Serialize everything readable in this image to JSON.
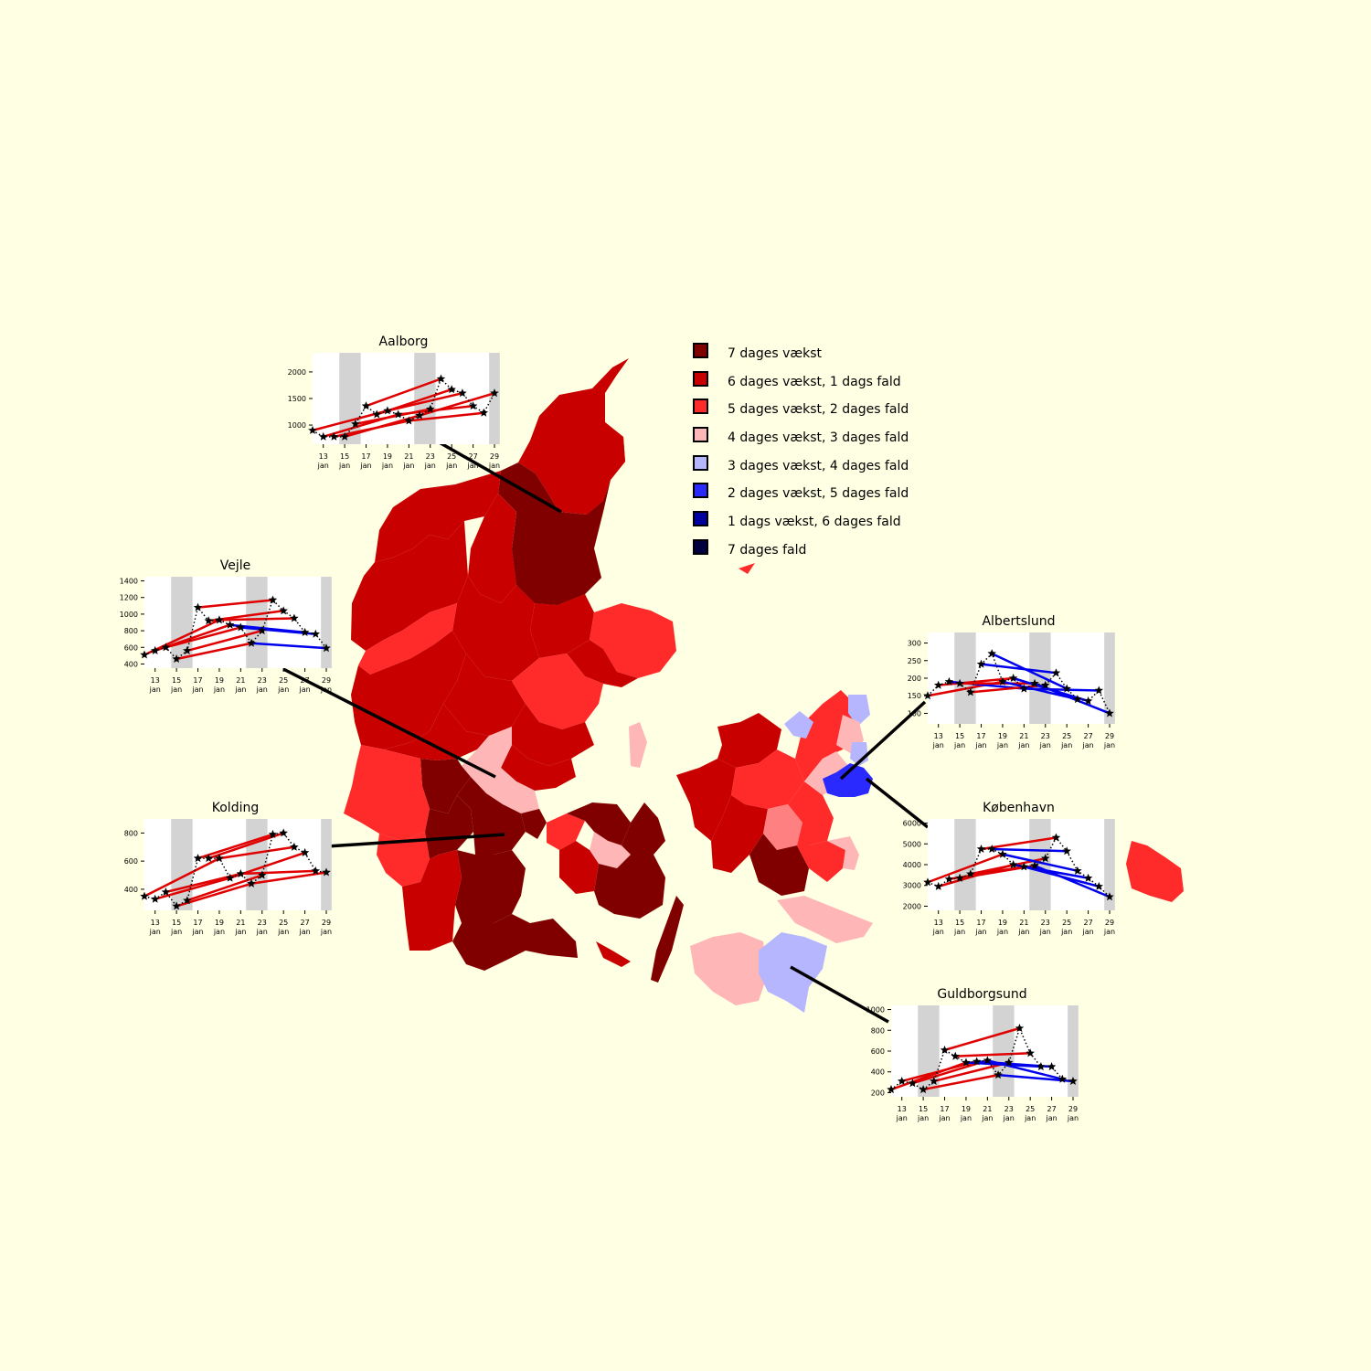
{
  "legend": {
    "items": [
      {
        "label": "7 dages vækst",
        "color": "#800000"
      },
      {
        "label": "6 dages vækst, 1 dags fald",
        "color": "#c80000"
      },
      {
        "label": "5 dages vækst, 2 dages fald",
        "color": "#ff2a2a"
      },
      {
        "label": "4 dages vækst, 3 dages fald",
        "color": "#ffb6b6"
      },
      {
        "label": "3 dages vækst, 4 dages fald",
        "color": "#b6b6ff"
      },
      {
        "label": "2 dages vækst, 5 dages fald",
        "color": "#2a2aff"
      },
      {
        "label": "1 dags vækst, 6 dages fald",
        "color": "#0000a0"
      },
      {
        "label": "7 dages fald",
        "color": "#000040"
      }
    ]
  },
  "colors": {
    "background": "#ffffe3",
    "growth_line": "#e00000",
    "decline_line": "#0000ee",
    "weekend_band": "#d3d3d3"
  },
  "chart_data": [
    {
      "type": "line",
      "title": "Aalborg",
      "x": [
        "12 jan",
        "13 jan",
        "14 jan",
        "15 jan",
        "16 jan",
        "17 jan",
        "18 jan",
        "19 jan",
        "20 jan",
        "21 jan",
        "22 jan",
        "23 jan",
        "24 jan",
        "25 jan",
        "26 jan",
        "27 jan",
        "28 jan",
        "29 jan"
      ],
      "xticks": [
        "13\njan",
        "15\njan",
        "17\njan",
        "19\njan",
        "21\njan",
        "23\njan",
        "25\njan",
        "27\njan",
        "29\njan"
      ],
      "values": [
        900,
        780,
        780,
        780,
        1020,
        1360,
        1200,
        1270,
        1200,
        1080,
        1180,
        1300,
        1870,
        1670,
        1600,
        1360,
        1230,
        1600
      ],
      "yticks": [
        1000,
        1500,
        2000
      ],
      "ylim": [
        640,
        2360
      ]
    },
    {
      "type": "line",
      "title": "Vejle",
      "x": [
        "12 jan",
        "13 jan",
        "14 jan",
        "15 jan",
        "16 jan",
        "17 jan",
        "18 jan",
        "19 jan",
        "20 jan",
        "21 jan",
        "22 jan",
        "23 jan",
        "24 jan",
        "25 jan",
        "26 jan",
        "27 jan",
        "28 jan",
        "29 jan"
      ],
      "xticks": [
        "13\njan",
        "15\njan",
        "17\njan",
        "19\njan",
        "21\njan",
        "23\njan",
        "25\njan",
        "27\njan",
        "29\njan"
      ],
      "values": [
        510,
        560,
        600,
        460,
        560,
        1080,
        920,
        930,
        870,
        840,
        650,
        800,
        1170,
        1040,
        950,
        780,
        760,
        590
      ],
      "yticks": [
        400,
        600,
        800,
        1000,
        1200,
        1400
      ],
      "ylim": [
        350,
        1450
      ]
    },
    {
      "type": "line",
      "title": "Kolding",
      "x": [
        "12 jan",
        "13 jan",
        "14 jan",
        "15 jan",
        "16 jan",
        "17 jan",
        "18 jan",
        "19 jan",
        "20 jan",
        "21 jan",
        "22 jan",
        "23 jan",
        "24 jan",
        "25 jan",
        "26 jan",
        "27 jan",
        "28 jan",
        "29 jan"
      ],
      "xticks": [
        "13\njan",
        "15\njan",
        "17\njan",
        "19\njan",
        "21\njan",
        "23\njan",
        "25\njan",
        "27\njan",
        "29\njan"
      ],
      "values": [
        350,
        330,
        380,
        280,
        320,
        620,
        620,
        620,
        480,
        510,
        440,
        500,
        790,
        800,
        700,
        660,
        530,
        520
      ],
      "yticks": [
        400,
        600,
        800
      ],
      "ylim": [
        250,
        900
      ]
    },
    {
      "type": "line",
      "title": "Albertslund",
      "x": [
        "12 jan",
        "13 jan",
        "14 jan",
        "15 jan",
        "16 jan",
        "17 jan",
        "18 jan",
        "19 jan",
        "20 jan",
        "21 jan",
        "22 jan",
        "23 jan",
        "24 jan",
        "25 jan",
        "26 jan",
        "27 jan",
        "28 jan",
        "29 jan"
      ],
      "xticks": [
        "13\njan",
        "15\njan",
        "17\njan",
        "19\njan",
        "21\njan",
        "23\njan",
        "25\njan",
        "27\njan",
        "29\njan"
      ],
      "values": [
        150,
        180,
        190,
        185,
        160,
        240,
        270,
        190,
        200,
        170,
        185,
        180,
        215,
        170,
        140,
        135,
        165,
        100
      ],
      "yticks": [
        100,
        150,
        200,
        250,
        300
      ],
      "ylim": [
        70,
        330
      ]
    },
    {
      "type": "line",
      "title": "København",
      "x": [
        "12 jan",
        "13 jan",
        "14 jan",
        "15 jan",
        "16 jan",
        "17 jan",
        "18 jan",
        "19 jan",
        "20 jan",
        "21 jan",
        "22 jan",
        "23 jan",
        "24 jan",
        "25 jan",
        "26 jan",
        "27 jan",
        "28 jan",
        "29 jan"
      ],
      "xticks": [
        "13\njan",
        "15\njan",
        "17\njan",
        "19\njan",
        "21\njan",
        "23\njan",
        "25\njan",
        "27\njan",
        "29\njan"
      ],
      "values": [
        3150,
        2950,
        3300,
        3350,
        3550,
        4750,
        4750,
        4500,
        4000,
        3900,
        3950,
        4300,
        5300,
        4650,
        3700,
        3350,
        2950,
        2450
      ],
      "yticks": [
        2000,
        3000,
        4000,
        5000,
        6000
      ],
      "ylim": [
        1800,
        6200
      ]
    },
    {
      "type": "line",
      "title": "Guldborgsund",
      "x": [
        "12 jan",
        "13 jan",
        "14 jan",
        "15 jan",
        "16 jan",
        "17 jan",
        "18 jan",
        "19 jan",
        "20 jan",
        "21 jan",
        "22 jan",
        "23 jan",
        "24 jan",
        "25 jan",
        "26 jan",
        "27 jan",
        "28 jan",
        "29 jan"
      ],
      "xticks": [
        "13\njan",
        "15\njan",
        "17\njan",
        "19\njan",
        "21\njan",
        "23\njan",
        "25\njan",
        "27\njan",
        "29\njan"
      ],
      "values": [
        230,
        310,
        290,
        230,
        310,
        610,
        550,
        490,
        500,
        510,
        370,
        490,
        820,
        580,
        450,
        450,
        330,
        310
      ],
      "yticks": [
        200,
        400,
        600,
        800,
        1000
      ],
      "ylim": [
        160,
        1040
      ]
    }
  ]
}
